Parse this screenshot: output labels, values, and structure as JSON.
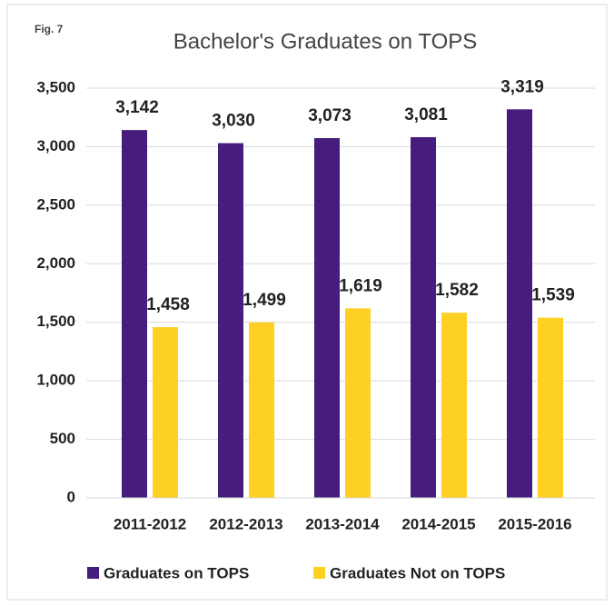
{
  "chart_data": {
    "type": "bar",
    "title": "Bachelor's Graduates on TOPS",
    "annotation": "Fig. 7",
    "categories": [
      "2011-2012",
      "2012-2013",
      "2013-2014",
      "2014-2015",
      "2015-2016"
    ],
    "series": [
      {
        "name": "Graduates on TOPS",
        "color": "#461d7c",
        "values": [
          3142,
          3030,
          3073,
          3081,
          3319
        ],
        "value_labels": [
          "3,142",
          "3,030",
          "3,073",
          "3,081",
          "3,319"
        ]
      },
      {
        "name": "Graduates Not on TOPS",
        "color": "#fdd023",
        "values": [
          1458,
          1499,
          1619,
          1582,
          1539
        ],
        "value_labels": [
          "1,458",
          "1,499",
          "1,619",
          "1,582",
          "1,539"
        ]
      }
    ],
    "ylim": [
      0,
      3500
    ],
    "yticks": [
      0,
      500,
      {
        "value": 1000,
        "label": "1,000"
      },
      {
        "value": 1500,
        "label": "1,500"
      },
      {
        "value": 2000,
        "label": "2,000"
      },
      {
        "value": 2500,
        "label": "2,500"
      },
      {
        "value": 3000,
        "label": "3,000"
      },
      {
        "value": 3500,
        "label": "3,500"
      }
    ],
    "grid": true,
    "legend": "bottom"
  }
}
